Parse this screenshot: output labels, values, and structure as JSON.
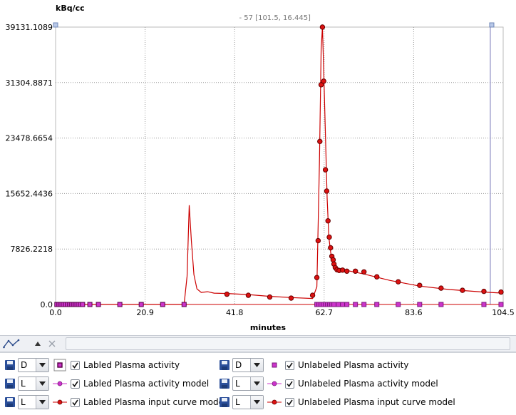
{
  "chart_data": {
    "type": "scatter",
    "ylabel": "kBq/cc",
    "xlabel": "minutes",
    "xlim": [
      0.0,
      104.5
    ],
    "ylim": [
      0.0,
      39131.1089
    ],
    "x_ticks": [
      "0.0",
      "20.9",
      "41.8",
      "62.7",
      "83.6",
      "104.5"
    ],
    "y_ticks": [
      "0.0",
      "7826.2218",
      "15652.4436",
      "23478.6654",
      "31304.8871",
      "39131.1089"
    ],
    "x_tick_values": [
      0.0,
      20.9,
      41.8,
      62.7,
      83.6,
      104.5
    ],
    "y_tick_values": [
      0.0,
      7826.2218,
      15652.4436,
      23478.6654,
      31304.8871,
      39131.1089
    ],
    "grid": true,
    "cursor_label": "- 57 [101.5, 16.445]",
    "cursor_x": 101.5,
    "series": [
      {
        "name": "Labled Plasma activity",
        "marker": "square",
        "x": [
          0.3,
          0.8,
          1.3,
          1.8,
          2.3,
          2.8,
          3.3,
          3.8,
          4.3,
          4.8,
          5.3,
          5.8,
          6.3,
          8.0,
          10.0,
          15.0,
          20.0,
          25.0,
          30.0
        ],
        "y": [
          0,
          0,
          0,
          0,
          0,
          0,
          0,
          0,
          0,
          0,
          0,
          0,
          0,
          0,
          0,
          0,
          0,
          0,
          0
        ]
      },
      {
        "name": "Unlabeled Plasma activity",
        "marker": "square",
        "x": [
          61.0,
          61.5,
          62.0,
          62.5,
          63.0,
          63.5,
          64.0,
          64.5,
          65.0,
          66.0,
          67.0,
          68.0,
          70.0,
          72.0,
          75.0,
          80.0,
          85.0,
          90.0,
          100.0,
          104.0
        ],
        "y": [
          0,
          0,
          0,
          0,
          0,
          0,
          0,
          0,
          0,
          0,
          0,
          0,
          0,
          0,
          0,
          0,
          0,
          0,
          0,
          0
        ]
      },
      {
        "name": "Labled Plasma input curve model",
        "type": "line",
        "x": [
          0,
          30.0,
          30.7,
          31.2,
          31.7,
          32.3,
          33.0,
          34.0,
          35.5,
          37.0,
          40.0,
          45.0,
          50.0,
          55.0,
          60.0,
          61.0,
          61.6,
          62.0,
          62.3,
          62.6,
          63.0,
          63.4,
          63.8,
          64.3,
          64.8,
          65.5,
          66.5,
          68.0,
          72.0,
          78.0,
          85.0,
          92.0,
          100.0,
          104.5
        ],
        "y": [
          0,
          0,
          4000,
          14000,
          9000,
          4200,
          2200,
          1700,
          1800,
          1600,
          1550,
          1400,
          1150,
          980,
          850,
          2500,
          20000,
          36000,
          39131,
          33000,
          24000,
          15000,
          9500,
          7000,
          5800,
          5200,
          5000,
          4800,
          4300,
          3400,
          2600,
          2100,
          1750,
          1600
        ]
      },
      {
        "name": "Labled Plasma input curve model",
        "marker": "circle",
        "x": [
          40.0,
          45.0,
          50.0,
          55.0,
          60.0,
          61.0,
          61.3,
          61.7,
          62.0,
          62.3,
          62.6,
          63.0,
          63.3,
          63.6,
          63.9,
          64.2,
          64.5,
          64.8,
          65.0,
          65.3,
          65.7,
          66.2,
          67.0,
          68.0,
          70.0,
          72.0,
          75.0,
          80.0,
          85.0,
          90.0,
          95.0,
          100.0,
          104.0
        ],
        "y": [
          1450,
          1300,
          1050,
          900,
          1300,
          3800,
          9000,
          23000,
          31000,
          39131,
          31500,
          19000,
          16000,
          11800,
          9500,
          8000,
          6800,
          6300,
          5700,
          5200,
          4900,
          4800,
          4850,
          4700,
          4700,
          4600,
          3900,
          3200,
          2700,
          2300,
          2000,
          1850,
          1750
        ]
      }
    ]
  },
  "toolbar": {
    "curve_icon": "curve-fit-icon",
    "up_icon": "triangle-up-icon",
    "close_icon": "close-icon"
  },
  "legend": {
    "rows": [
      {
        "mode": "D",
        "label": "Labled Plasma activity",
        "symbol": "square-dark",
        "checked": true
      },
      {
        "mode": "L",
        "label": "Labled Plasma activity model",
        "symbol": "line-magenta-dot",
        "checked": true
      },
      {
        "mode": "L",
        "label": "Labled Plasma input curve model",
        "symbol": "line-red-dot",
        "checked": true
      },
      {
        "mode": "D",
        "label": "Unlabeled Plasma activity",
        "symbol": "square-magenta",
        "checked": true
      },
      {
        "mode": "L",
        "label": "Unlabeled Plasma activity model",
        "symbol": "line-magenta-dot",
        "checked": true
      },
      {
        "mode": "L",
        "label": "Unlabeled Plasma input curve model",
        "symbol": "line-red-dot",
        "checked": true
      }
    ]
  },
  "colors": {
    "curve_red": "#cc0000",
    "marker_red": "#dd1111",
    "marker_magenta": "#cc33cc",
    "marker_dark": "#550044",
    "grid": "#999999",
    "cursor_line": "#7a7ab8"
  }
}
